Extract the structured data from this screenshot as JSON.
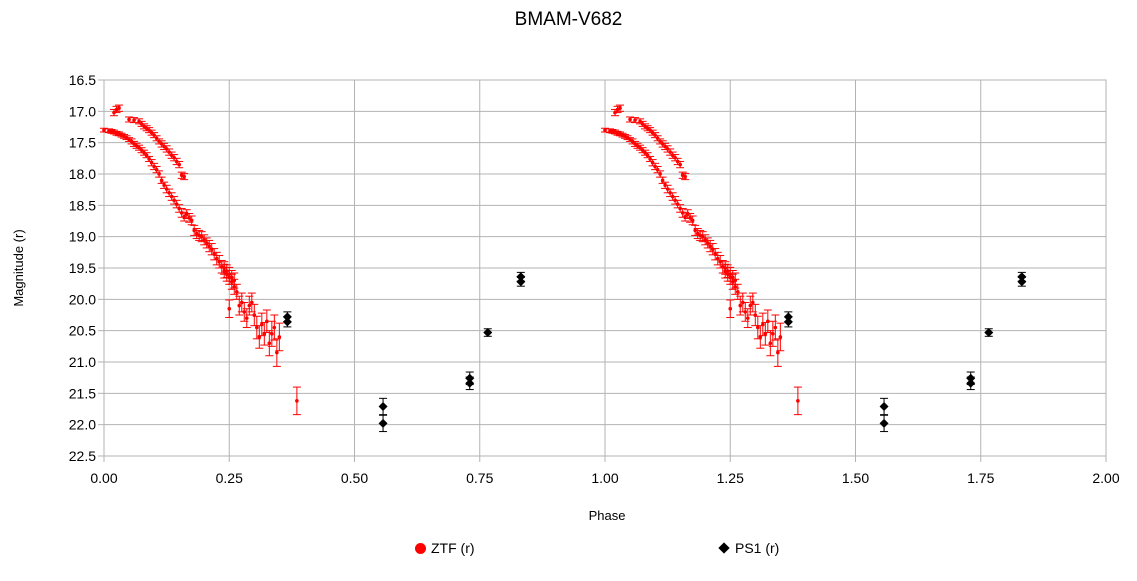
{
  "chart_data": {
    "type": "scatter",
    "title": "BMAM-V682",
    "xlabel": "Phase",
    "ylabel": "Magnitude (r)",
    "xlim": [
      0.0,
      2.0
    ],
    "ylim": [
      16.5,
      22.5
    ],
    "y_inverted": true,
    "grid": true,
    "legend_position": "bottom",
    "xticks": [
      "0.00",
      "0.25",
      "0.50",
      "0.75",
      "1.00",
      "1.25",
      "1.50",
      "1.75",
      "2.00"
    ],
    "yticks": [
      "16.5",
      "17.0",
      "17.5",
      "18.0",
      "18.5",
      "19.0",
      "19.5",
      "20.0",
      "20.5",
      "21.0",
      "21.5",
      "22.0",
      "22.5"
    ],
    "series": [
      {
        "name": "ZTF (r)",
        "color": "#ff0000",
        "marker": "circle",
        "points": [
          [
            0.0,
            17.3,
            0.03
          ],
          [
            0.01,
            17.31,
            0.03
          ],
          [
            0.015,
            17.32,
            0.03
          ],
          [
            0.02,
            17.33,
            0.03
          ],
          [
            0.025,
            17.35,
            0.03
          ],
          [
            0.03,
            17.36,
            0.03
          ],
          [
            0.035,
            17.38,
            0.03
          ],
          [
            0.04,
            17.4,
            0.03
          ],
          [
            0.045,
            17.42,
            0.03
          ],
          [
            0.05,
            17.45,
            0.03
          ],
          [
            0.055,
            17.48,
            0.04
          ],
          [
            0.06,
            17.52,
            0.04
          ],
          [
            0.065,
            17.55,
            0.04
          ],
          [
            0.07,
            17.58,
            0.04
          ],
          [
            0.075,
            17.62,
            0.04
          ],
          [
            0.08,
            17.66,
            0.04
          ],
          [
            0.085,
            17.7,
            0.04
          ],
          [
            0.09,
            17.76,
            0.04
          ],
          [
            0.095,
            17.82,
            0.05
          ],
          [
            0.1,
            17.88,
            0.05
          ],
          [
            0.105,
            17.93,
            0.05
          ],
          [
            0.11,
            18.0,
            0.05
          ],
          [
            0.02,
            17.02,
            0.05
          ],
          [
            0.025,
            16.97,
            0.05
          ],
          [
            0.03,
            16.95,
            0.05
          ],
          [
            0.05,
            17.13,
            0.04
          ],
          [
            0.06,
            17.14,
            0.04
          ],
          [
            0.07,
            17.16,
            0.04
          ],
          [
            0.075,
            17.2,
            0.04
          ],
          [
            0.08,
            17.24,
            0.04
          ],
          [
            0.085,
            17.27,
            0.04
          ],
          [
            0.09,
            17.3,
            0.04
          ],
          [
            0.095,
            17.34,
            0.04
          ],
          [
            0.1,
            17.38,
            0.04
          ],
          [
            0.105,
            17.43,
            0.04
          ],
          [
            0.11,
            17.48,
            0.04
          ],
          [
            0.115,
            17.52,
            0.05
          ],
          [
            0.12,
            17.56,
            0.05
          ],
          [
            0.125,
            17.6,
            0.05
          ],
          [
            0.13,
            17.65,
            0.05
          ],
          [
            0.135,
            17.7,
            0.05
          ],
          [
            0.14,
            17.74,
            0.05
          ],
          [
            0.145,
            17.8,
            0.05
          ],
          [
            0.15,
            17.85,
            0.05
          ],
          [
            0.155,
            18.02,
            0.05
          ],
          [
            0.16,
            18.04,
            0.05
          ],
          [
            0.115,
            18.1,
            0.05
          ],
          [
            0.12,
            18.18,
            0.05
          ],
          [
            0.125,
            18.24,
            0.06
          ],
          [
            0.13,
            18.3,
            0.06
          ],
          [
            0.135,
            18.36,
            0.06
          ],
          [
            0.14,
            18.42,
            0.06
          ],
          [
            0.145,
            18.48,
            0.06
          ],
          [
            0.15,
            18.55,
            0.06
          ],
          [
            0.155,
            18.62,
            0.07
          ],
          [
            0.16,
            18.68,
            0.07
          ],
          [
            0.165,
            18.64,
            0.07
          ],
          [
            0.17,
            18.7,
            0.07
          ],
          [
            0.175,
            18.74,
            0.07
          ],
          [
            0.18,
            18.9,
            0.08
          ],
          [
            0.185,
            18.95,
            0.08
          ],
          [
            0.19,
            18.98,
            0.08
          ],
          [
            0.195,
            19.0,
            0.08
          ],
          [
            0.2,
            19.05,
            0.08
          ],
          [
            0.205,
            19.1,
            0.08
          ],
          [
            0.21,
            19.15,
            0.09
          ],
          [
            0.215,
            19.2,
            0.09
          ],
          [
            0.22,
            19.28,
            0.09
          ],
          [
            0.225,
            19.35,
            0.1
          ],
          [
            0.23,
            19.4,
            0.1
          ],
          [
            0.235,
            19.48,
            0.1
          ],
          [
            0.24,
            19.55,
            0.11
          ],
          [
            0.245,
            19.6,
            0.11
          ],
          [
            0.25,
            19.65,
            0.11
          ],
          [
            0.255,
            19.72,
            0.12
          ],
          [
            0.26,
            19.8,
            0.12
          ],
          [
            0.265,
            19.88,
            0.12
          ],
          [
            0.24,
            19.5,
            0.1
          ],
          [
            0.245,
            19.55,
            0.1
          ],
          [
            0.25,
            19.6,
            0.11
          ],
          [
            0.255,
            19.65,
            0.11
          ],
          [
            0.26,
            19.7,
            0.12
          ],
          [
            0.25,
            20.15,
            0.14
          ],
          [
            0.27,
            20.1,
            0.15
          ],
          [
            0.275,
            20.05,
            0.15
          ],
          [
            0.28,
            20.2,
            0.15
          ],
          [
            0.285,
            20.3,
            0.15
          ],
          [
            0.29,
            20.1,
            0.15
          ],
          [
            0.295,
            20.05,
            0.15
          ],
          [
            0.3,
            20.25,
            0.17
          ],
          [
            0.305,
            20.45,
            0.18
          ],
          [
            0.31,
            20.6,
            0.18
          ],
          [
            0.315,
            20.4,
            0.18
          ],
          [
            0.32,
            20.55,
            0.18
          ],
          [
            0.325,
            20.35,
            0.18
          ],
          [
            0.33,
            20.7,
            0.2
          ],
          [
            0.335,
            20.55,
            0.2
          ],
          [
            0.34,
            20.45,
            0.2
          ],
          [
            0.345,
            20.85,
            0.22
          ],
          [
            0.35,
            20.6,
            0.22
          ],
          [
            0.385,
            21.62,
            0.22
          ]
        ]
      },
      {
        "name": "PS1 (r)",
        "color": "#000000",
        "marker": "diamond",
        "points": [
          [
            0.366,
            20.28,
            0.08
          ],
          [
            0.366,
            20.36,
            0.08
          ],
          [
            0.557,
            21.98,
            0.13
          ],
          [
            0.557,
            21.71,
            0.13
          ],
          [
            0.73,
            21.26,
            0.1
          ],
          [
            0.73,
            21.34,
            0.1
          ],
          [
            0.766,
            20.53,
            0.06
          ],
          [
            0.832,
            19.64,
            0.07
          ],
          [
            0.832,
            19.72,
            0.07
          ]
        ]
      }
    ]
  }
}
